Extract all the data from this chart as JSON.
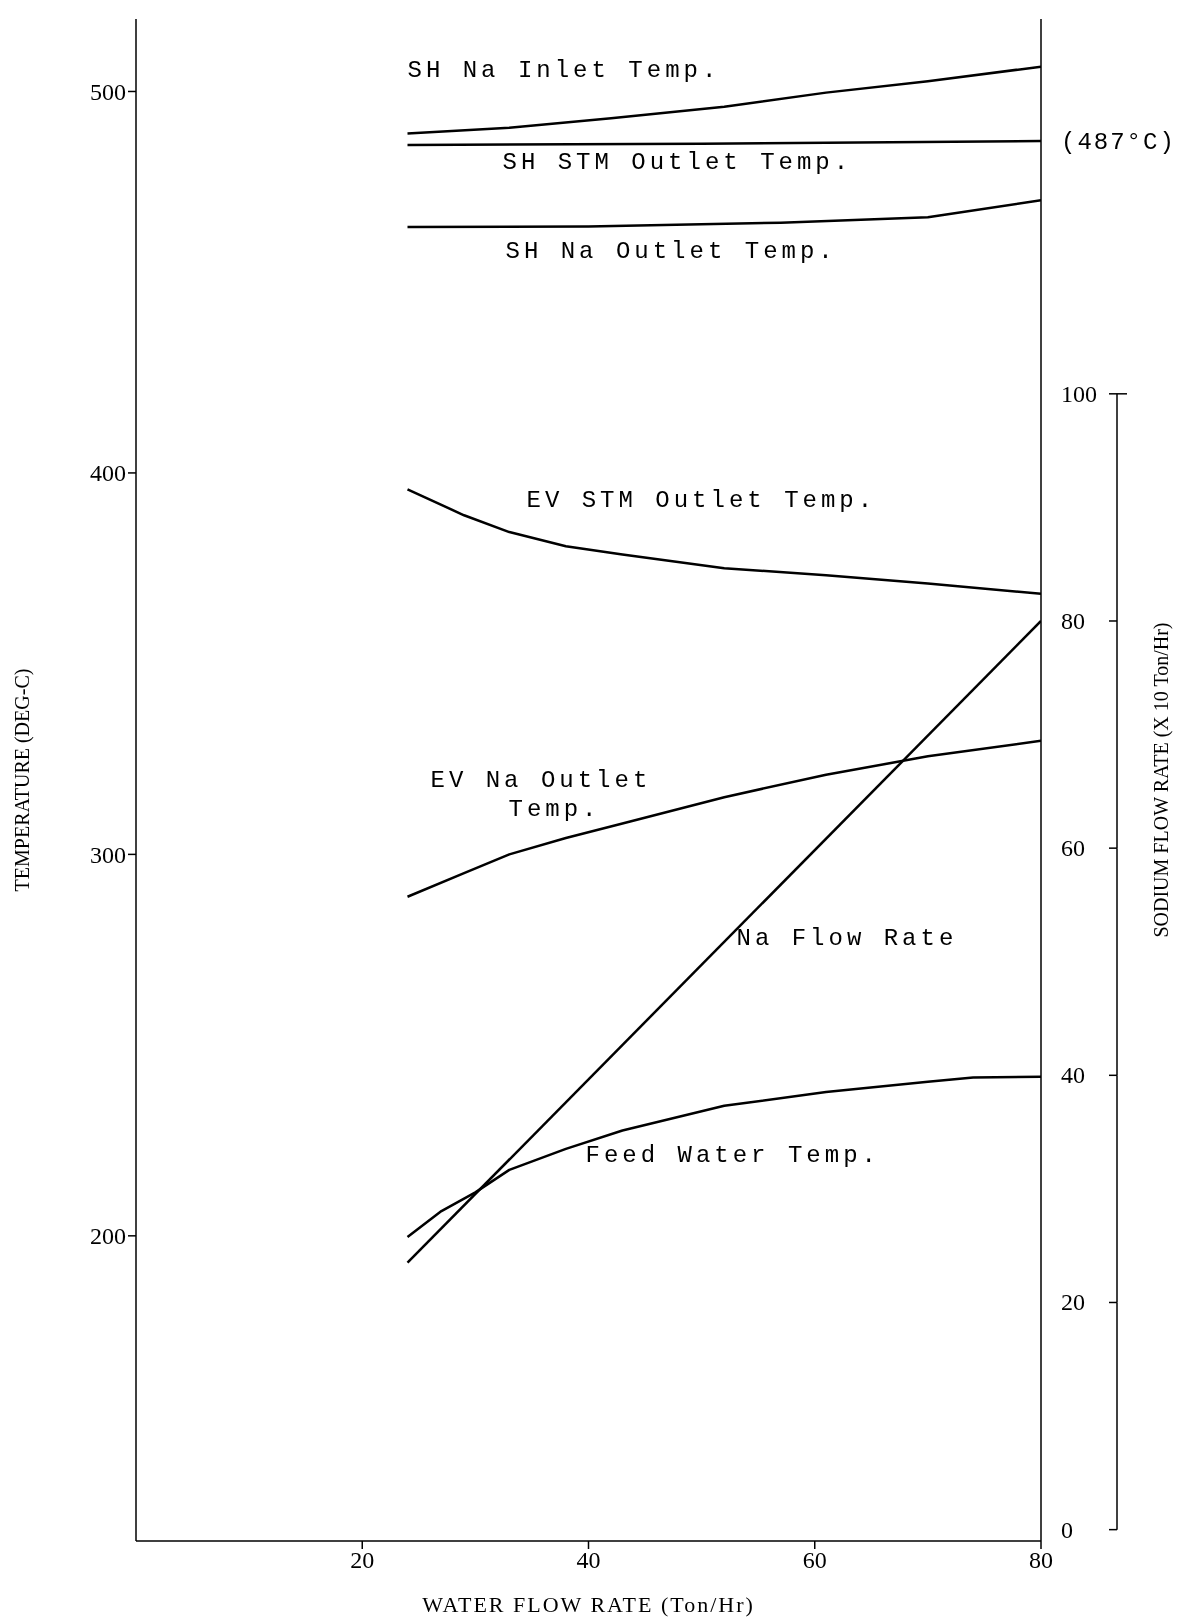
{
  "chart_data": {
    "type": "line",
    "xlabel": "WATER FLOW RATE (Ton/Hr)",
    "ylabel": "TEMPERATURE (DEG-C)",
    "y2label": "SODIUM FLOW RATE (X 10 Ton/Hr)",
    "xlim": [
      0,
      80
    ],
    "xticks": [
      20,
      40,
      60,
      80
    ],
    "ylim": [
      120,
      519
    ],
    "yticks": [
      200,
      300,
      400,
      500
    ],
    "y2lim": [
      -1,
      133
    ],
    "y2ticks": [
      0,
      20,
      40,
      60,
      80,
      100
    ],
    "marker": "none",
    "line_style": "solid",
    "annotations": [
      {
        "text": "(487°C)",
        "x": 80,
        "y": 487
      }
    ],
    "series": [
      {
        "name": "SH Na Inlet Temp.",
        "color": "#000000",
        "x": [
          24,
          33,
          42,
          52,
          61,
          70,
          80
        ],
        "values": [
          489,
          490.5,
          493,
          496,
          499.7,
          502.7,
          506.5
        ]
      },
      {
        "name": "SH STM Outlet Temp.",
        "color": "#000000",
        "x": [
          24,
          50,
          80
        ],
        "values": [
          486,
          486.3,
          487
        ]
      },
      {
        "name": "SH Na Outlet Temp.",
        "color": "#000000",
        "x": [
          24,
          40,
          57,
          70,
          80
        ],
        "values": [
          464.5,
          464.6,
          465.6,
          467,
          471.5
        ]
      },
      {
        "name": "EV STM Outlet Temp.",
        "color": "#000000",
        "x": [
          24,
          29,
          33,
          38,
          43,
          52,
          61,
          70,
          80
        ],
        "values": [
          395.7,
          388.9,
          384.5,
          380.8,
          378.6,
          375,
          373.2,
          371,
          368.3
        ]
      },
      {
        "name": "EV Na Outlet Temp.",
        "color": "#000000",
        "x": [
          24,
          29,
          33,
          38,
          43,
          52,
          61,
          70,
          80
        ],
        "values": [
          288.9,
          295.1,
          300,
          304.3,
          308.1,
          315,
          320.9,
          325.7,
          329.8
        ]
      },
      {
        "name": "Na Flow Rate",
        "color": "#000000",
        "axis": "y2",
        "x": [
          24,
          80
        ],
        "values": [
          23.5,
          80
        ]
      },
      {
        "name": "Feed Water Temp.",
        "color": "#000000",
        "x": [
          24,
          27,
          30,
          33,
          38,
          43,
          52,
          61,
          70,
          74,
          80
        ],
        "values": [
          199.7,
          206.5,
          211.4,
          217.3,
          222.8,
          227.6,
          234.1,
          237.7,
          240.4,
          241.5,
          241.7
        ]
      }
    ]
  }
}
